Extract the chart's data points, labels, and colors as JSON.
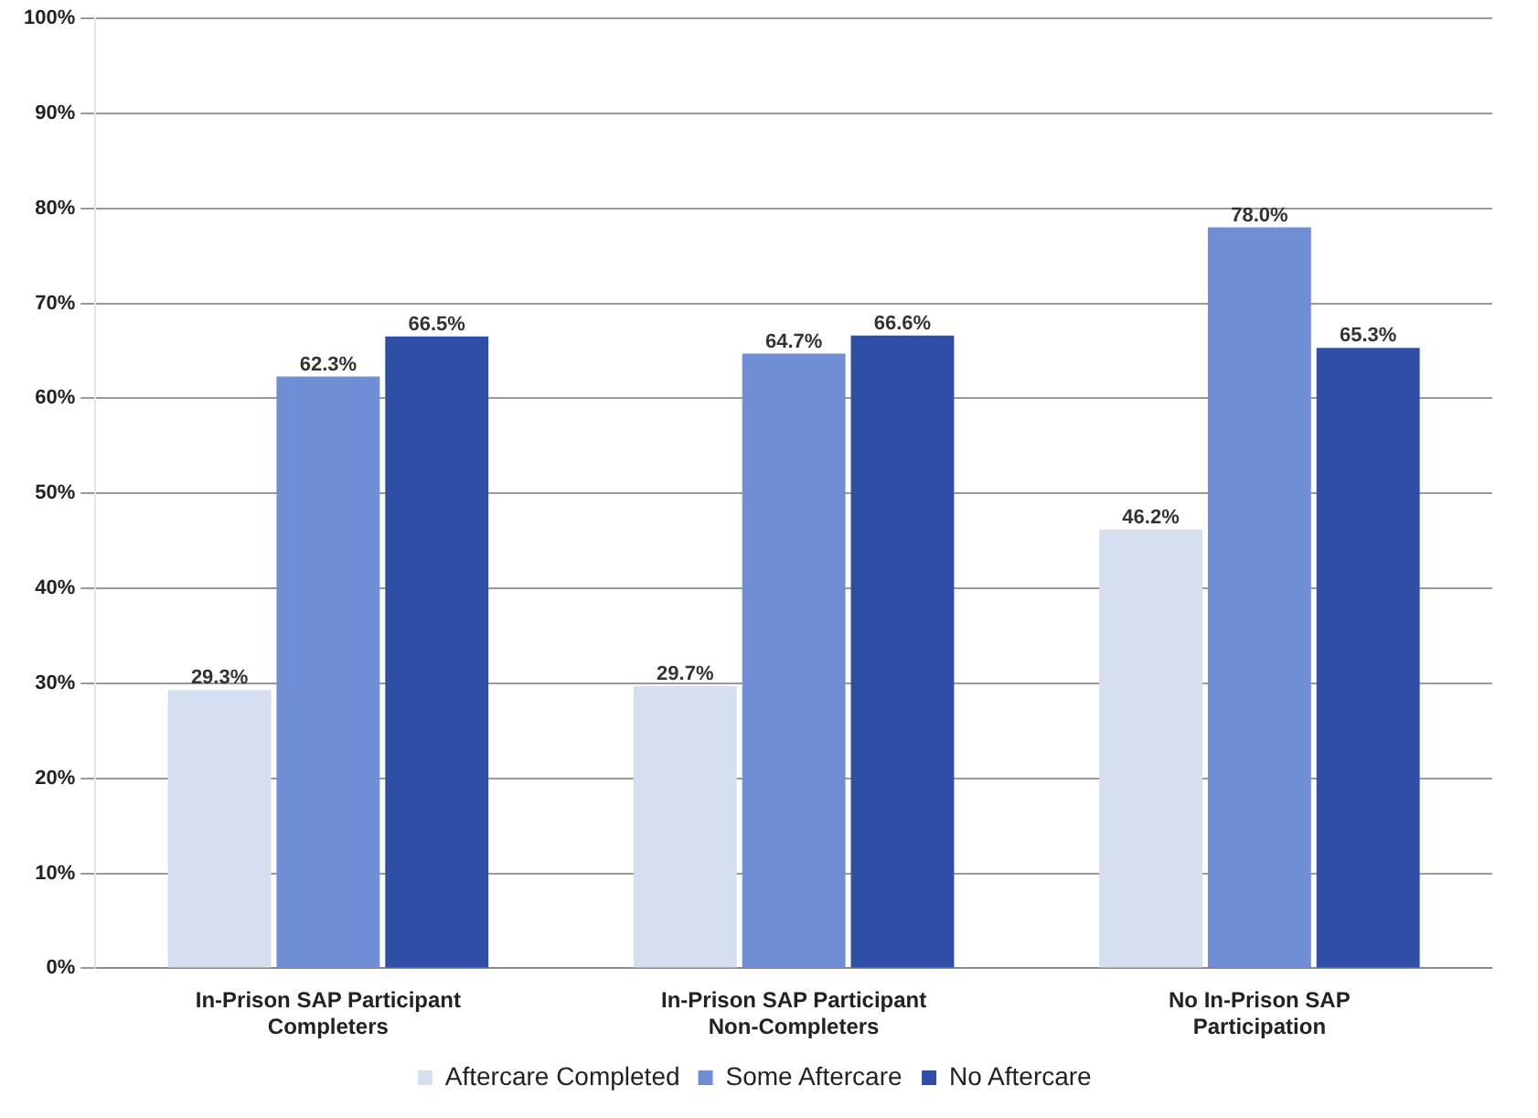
{
  "chart_data": {
    "type": "bar",
    "categories": [
      "In-Prison SAP Participant Completers",
      "In-Prison SAP Participant Non-Completers",
      "No In-Prison SAP Participation"
    ],
    "series": [
      {
        "name": "Aftercare Completed",
        "color": "#d5dff0",
        "values": [
          29.3,
          29.7,
          46.2
        ]
      },
      {
        "name": "Some Aftercare",
        "color": "#6f8ed6",
        "values": [
          62.3,
          64.7,
          78.0
        ]
      },
      {
        "name": "No Aftercare",
        "color": "#2f4fa6",
        "values": [
          66.5,
          66.6,
          65.3
        ]
      }
    ],
    "value_labels": [
      [
        "29.3%",
        "29.7%",
        "46.2%"
      ],
      [
        "62.3%",
        "64.7%",
        "78.0%"
      ],
      [
        "66.5%",
        "66.6%",
        "65.3%"
      ]
    ],
    "ylim": [
      0,
      100
    ],
    "yticks": [
      {
        "value": 0,
        "label": "0%"
      },
      {
        "value": 10,
        "label": "10%"
      },
      {
        "value": 20,
        "label": "20%"
      },
      {
        "value": 30,
        "label": "30%"
      },
      {
        "value": 40,
        "label": "40%"
      },
      {
        "value": 50,
        "label": "50%"
      },
      {
        "value": 60,
        "label": "60%"
      },
      {
        "value": 70,
        "label": "70%"
      },
      {
        "value": 80,
        "label": "80%"
      },
      {
        "value": 90,
        "label": "90%"
      },
      {
        "value": 100,
        "label": "100%"
      }
    ],
    "grid": "y",
    "legend": "bottom"
  }
}
